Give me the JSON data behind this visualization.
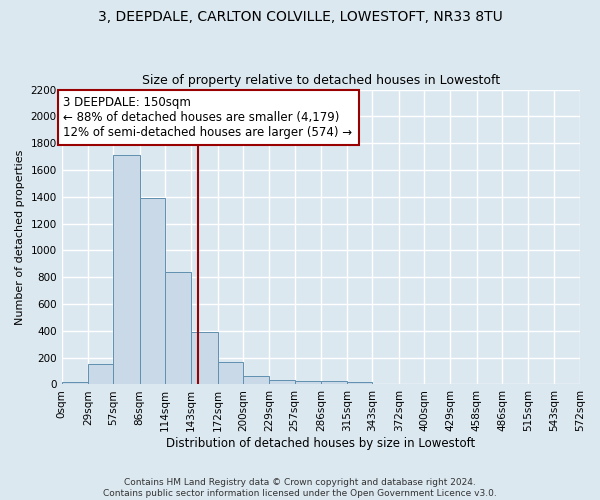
{
  "title": "3, DEEPDALE, CARLTON COLVILLE, LOWESTOFT, NR33 8TU",
  "subtitle": "Size of property relative to detached houses in Lowestoft",
  "xlabel": "Distribution of detached houses by size in Lowestoft",
  "ylabel": "Number of detached properties",
  "footer_line1": "Contains HM Land Registry data © Crown copyright and database right 2024.",
  "footer_line2": "Contains public sector information licensed under the Open Government Licence v3.0.",
  "bar_edges": [
    0,
    29,
    57,
    86,
    114,
    143,
    172,
    200,
    229,
    257,
    286,
    315,
    343,
    372,
    400,
    429,
    458,
    486,
    515,
    543,
    572
  ],
  "bar_heights": [
    20,
    155,
    1710,
    1390,
    840,
    390,
    170,
    65,
    30,
    28,
    27,
    22,
    0,
    0,
    0,
    0,
    0,
    0,
    0,
    0
  ],
  "bar_color": "#c9d9e8",
  "bar_edgecolor": "#6090b0",
  "bar_linewidth": 0.7,
  "vline_x": 150,
  "vline_color": "#990000",
  "vline_linewidth": 1.5,
  "annotation_line1": "3 DEEPDALE: 150sqm",
  "annotation_line2": "← 88% of detached houses are smaller (4,179)",
  "annotation_line3": "12% of semi-detached houses are larger (574) →",
  "annotation_box_color": "white",
  "annotation_box_edgecolor": "#990000",
  "annotation_fontsize": 8.5,
  "ylim": [
    0,
    2200
  ],
  "yticks": [
    0,
    200,
    400,
    600,
    800,
    1000,
    1200,
    1400,
    1600,
    1800,
    2000,
    2200
  ],
  "title_fontsize": 10,
  "subtitle_fontsize": 9,
  "xlabel_fontsize": 8.5,
  "ylabel_fontsize": 8,
  "tick_fontsize": 7.5,
  "footer_fontsize": 6.5,
  "bg_color": "#dce8f0",
  "plot_bg_color": "#dce8f0",
  "grid_color": "#ffffff",
  "grid_linewidth": 1.0
}
